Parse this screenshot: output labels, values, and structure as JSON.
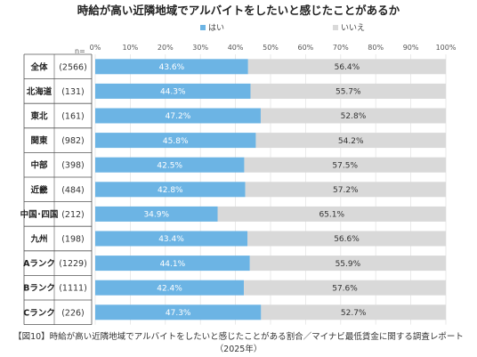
{
  "chart_data": {
    "type": "bar",
    "orientation": "horizontal",
    "stacked": true,
    "title": "時給が高い近隣地域でアルバイトをしたいと感じたことがあるか",
    "legend": [
      "はい",
      "いいえ"
    ],
    "n_header": "n=",
    "xlim": [
      0,
      100
    ],
    "x_ticks": [
      "0%",
      "10%",
      "20%",
      "30%",
      "40%",
      "50%",
      "60%",
      "70%",
      "80%",
      "90%",
      "100%"
    ],
    "categories": [
      "全体",
      "北海道",
      "東北",
      "関東",
      "中部",
      "近畿",
      "中国･四国",
      "九州",
      "Aランク",
      "Bランク",
      "Cランク"
    ],
    "n_labels": [
      "(2566)",
      "(131)",
      "(161)",
      "(982)",
      "(398)",
      "(484)",
      "(212)",
      "(198)",
      "(1229)",
      "(1111)",
      "(226)"
    ],
    "series": [
      {
        "name": "はい",
        "color": "#6cb4e4",
        "values": [
          43.6,
          44.3,
          47.2,
          45.8,
          42.5,
          42.8,
          34.9,
          43.4,
          44.1,
          42.4,
          47.3
        ],
        "labels": [
          "43.6%",
          "44.3%",
          "47.2%",
          "45.8%",
          "42.5%",
          "42.8%",
          "34.9%",
          "43.4%",
          "44.1%",
          "42.4%",
          "47.3%"
        ]
      },
      {
        "name": "いいえ",
        "color": "#d9d9d9",
        "values": [
          56.4,
          55.7,
          52.8,
          54.2,
          57.5,
          57.2,
          65.1,
          56.6,
          55.9,
          57.6,
          52.7
        ],
        "labels": [
          "56.4%",
          "55.7%",
          "52.8%",
          "54.2%",
          "57.5%",
          "57.2%",
          "65.1%",
          "56.6%",
          "55.9%",
          "57.6%",
          "52.7%"
        ]
      }
    ],
    "grid": true,
    "legend_position": "top"
  },
  "caption": {
    "line1": "【図10】時給が高い近隣地域でアルバイトをしたいと感じたことがある割合／マイナビ最低賃金に関する調査レポート",
    "line2": "（2025年）"
  }
}
